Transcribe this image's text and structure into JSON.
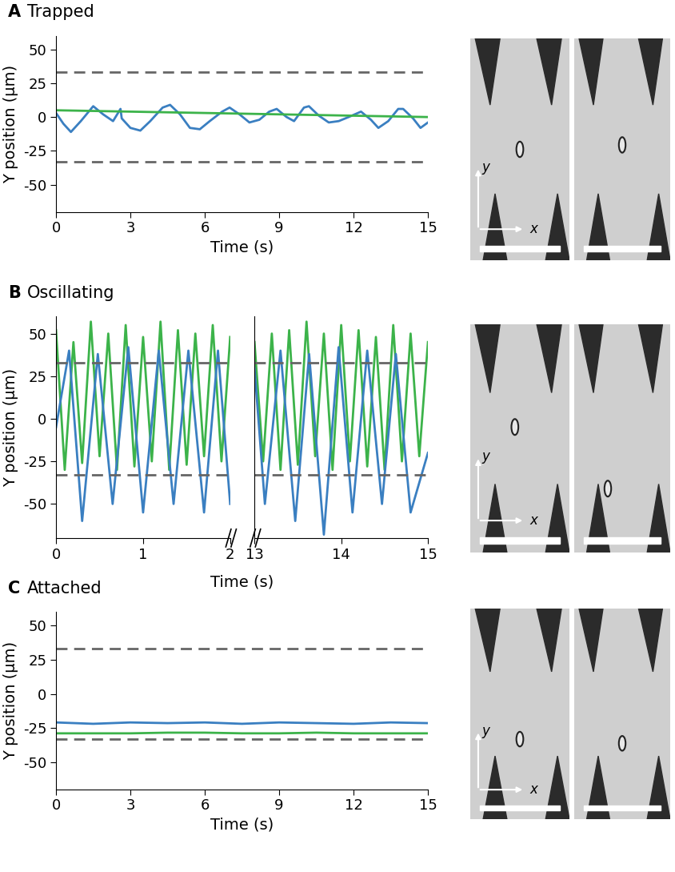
{
  "chart_data": [
    {
      "type": "line",
      "panel": "A",
      "title": "Trapped",
      "xlabel": "Time (s)",
      "ylabel": "Y position (μm)",
      "xlim": [
        0,
        15
      ],
      "xticks": [
        0,
        3,
        6,
        9,
        12,
        15
      ],
      "ylim": [
        -70,
        60
      ],
      "yticks": [
        -50,
        -25,
        0,
        25,
        50
      ],
      "hlines": [
        33,
        -33
      ],
      "image_axis_labels": [
        "x",
        "y"
      ],
      "series": [
        {
          "color": "#3a7fc1",
          "x": [
            0,
            0.3,
            0.6,
            1.0,
            1.5,
            1.9,
            2.3,
            2.6,
            2.65,
            3.0,
            3.4,
            3.8,
            4.3,
            4.6,
            5.0,
            5.4,
            5.8,
            6.2,
            6.7,
            7.0,
            7.4,
            7.8,
            8.2,
            8.6,
            8.9,
            9.3,
            9.6,
            10.0,
            10.2,
            10.6,
            11.0,
            11.4,
            11.8,
            12.3,
            12.7,
            13.0,
            13.4,
            13.8,
            14.0,
            14.4,
            14.7,
            15.0
          ],
          "values": [
            3,
            -5,
            -11,
            -3,
            8,
            2,
            -3,
            6,
            -1,
            -8,
            -10,
            -3,
            7,
            9,
            2,
            -8,
            -9,
            -3,
            4,
            7,
            2,
            -4,
            -2,
            4,
            6,
            0,
            -3,
            7,
            8,
            1,
            -4,
            -3,
            0,
            4,
            -2,
            -8,
            -3,
            6,
            6,
            -1,
            -8,
            -4
          ]
        },
        {
          "color": "#3cb34a",
          "x": [
            0,
            1.5,
            3,
            4.5,
            6,
            7.5,
            9,
            10.5,
            12,
            13.5,
            15
          ],
          "values": [
            5,
            4.5,
            4,
            3.5,
            3,
            2.5,
            2,
            1.5,
            1,
            0.5,
            0
          ]
        }
      ]
    },
    {
      "type": "line",
      "panel": "B",
      "title": "Oscillating",
      "xlabel": "Time (s)",
      "ylabel": "Y position (μm)",
      "xlim": [
        0,
        2
      ],
      "xticks": [
        0,
        1,
        2
      ],
      "ylim": [
        -70,
        60
      ],
      "yticks": [
        -50,
        -25,
        0,
        25,
        50
      ],
      "hlines": [
        33,
        -33
      ],
      "image_axis_labels": [
        "x",
        "y"
      ],
      "series": [
        {
          "color": "#3cb34a",
          "x": [
            0,
            0.1,
            0.2,
            0.3,
            0.4,
            0.5,
            0.6,
            0.7,
            0.8,
            0.9,
            1.0,
            1.1,
            1.2,
            1.3,
            1.4,
            1.5,
            1.6,
            1.7,
            1.8,
            1.9,
            2.0
          ],
          "values": [
            52,
            -30,
            45,
            -26,
            57,
            -22,
            50,
            -30,
            55,
            -28,
            48,
            -25,
            57,
            -30,
            52,
            -27,
            50,
            -22,
            55,
            -25,
            48
          ]
        },
        {
          "color": "#3a7fc1",
          "x": [
            0,
            0.15,
            0.3,
            0.48,
            0.65,
            0.83,
            1.0,
            1.18,
            1.35,
            1.52,
            1.7,
            1.86,
            2.0
          ],
          "values": [
            -5,
            40,
            -60,
            38,
            -50,
            42,
            -55,
            40,
            -50,
            40,
            -55,
            40,
            -50
          ]
        }
      ]
    },
    {
      "type": "line",
      "tick_labels": "x",
      "xlim": [
        13,
        15
      ],
      "xticks": [
        13,
        14,
        15
      ],
      "ylim": [
        -70,
        60
      ],
      "hlines": [
        33,
        -33
      ],
      "series": [
        {
          "color": "#3cb34a",
          "x": [
            13.0,
            13.1,
            13.2,
            13.3,
            13.4,
            13.5,
            13.6,
            13.7,
            13.8,
            13.9,
            14.0,
            14.1,
            14.2,
            14.3,
            14.4,
            14.5,
            14.6,
            14.7,
            14.8,
            14.9,
            15.0
          ],
          "values": [
            45,
            -25,
            50,
            -30,
            52,
            -27,
            57,
            -22,
            50,
            -30,
            55,
            -25,
            52,
            -28,
            48,
            -30,
            55,
            -25,
            50,
            -22,
            45
          ]
        },
        {
          "color": "#3a7fc1",
          "x": [
            13.0,
            13.12,
            13.3,
            13.47,
            13.63,
            13.8,
            13.97,
            14.13,
            14.3,
            14.47,
            14.63,
            14.8,
            15.0
          ],
          "values": [
            30,
            -50,
            40,
            -60,
            38,
            -68,
            42,
            -55,
            40,
            -50,
            38,
            -55,
            -20
          ]
        }
      ]
    },
    {
      "type": "line",
      "panel": "C",
      "title": "Attached",
      "xlabel": "Time (s)",
      "ylabel": "Y position (μm)",
      "xlim": [
        0,
        15
      ],
      "xticks": [
        0,
        3,
        6,
        9,
        12,
        15
      ],
      "ylim": [
        -70,
        60
      ],
      "yticks": [
        -50,
        -25,
        0,
        25,
        50
      ],
      "hlines": [
        33,
        -33
      ],
      "image_axis_labels": [
        "x",
        "y"
      ],
      "series": [
        {
          "color": "#3a7fc1",
          "x": [
            0,
            1.5,
            3,
            4.5,
            6,
            7.5,
            9,
            10.5,
            12,
            13.5,
            15
          ],
          "values": [
            -21,
            -22,
            -21,
            -21.5,
            -21,
            -22,
            -21,
            -21.5,
            -22,
            -21,
            -21.5
          ]
        },
        {
          "color": "#3cb34a",
          "x": [
            0,
            1.5,
            3,
            4.5,
            6,
            7.5,
            9,
            10.5,
            12,
            13.5,
            15
          ],
          "values": [
            -29,
            -29,
            -29,
            -28.5,
            -28.5,
            -29,
            -29,
            -28.5,
            -29,
            -29,
            -29
          ]
        }
      ]
    }
  ]
}
